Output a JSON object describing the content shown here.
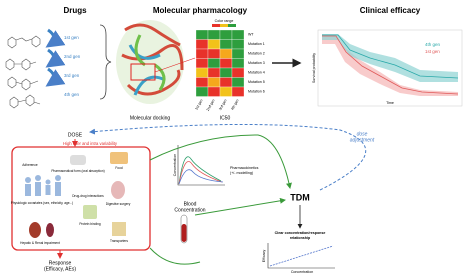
{
  "drugs": {
    "title": "Drugs",
    "generations": [
      "1st gen",
      "2nd gen",
      "3rd gen",
      "4th gen"
    ]
  },
  "molecular_pharmacology": {
    "title": "Molecular pharmacology",
    "docking_label": "Molecular docking",
    "ic50_label": "IC50",
    "legend_title": "Color range",
    "rows": [
      "WT",
      "Mutation 1",
      "Mutation 2",
      "Mutation 3",
      "Mutation 4",
      "Mutation 5",
      "Mutation 6"
    ],
    "columns": [
      "1st gen",
      "2nd gen",
      "3rd gen",
      "4th gen"
    ],
    "heatmap_colors": [
      [
        "#2e9e3e",
        "#2e9e3e",
        "#2e9e3e",
        "#2e9e3e"
      ],
      [
        "#e8322a",
        "#f2c21a",
        "#2e9e3e",
        "#2e9e3e"
      ],
      [
        "#e8322a",
        "#e8322a",
        "#f5a81c",
        "#2e9e3e"
      ],
      [
        "#e8322a",
        "#2e9e3e",
        "#e8322a",
        "#2e9e3e"
      ],
      [
        "#f2c21a",
        "#e8322a",
        "#2e9e3e",
        "#e8322a"
      ],
      [
        "#e8322a",
        "#f5a81c",
        "#e8322a",
        "#2e9e3e"
      ],
      [
        "#2e9e3e",
        "#e8322a",
        "#f2c21a",
        "#e8322a"
      ]
    ]
  },
  "clinical_efficacy": {
    "title": "Clinical efficacy",
    "legend": [
      "4th gen",
      "1st gen"
    ],
    "y_label": "Survival probability",
    "x_label": "Time"
  },
  "tdm": {
    "dose": "DOSE",
    "variability": "High inter and intra variability",
    "factors": [
      "Adherence",
      "Pharmaceutical form (oral absorption)",
      "Food",
      "Physiologic covariates (sex, ethnicity, age...)",
      "Drug-drug interactions",
      "Digestive surgery",
      "Hepatic & Renal impairment",
      "Protein binding",
      "Transporters"
    ],
    "response": [
      "Response",
      "(Efficacy, AEs)"
    ],
    "pk": [
      "Pharmacokinetics",
      "(+/- modelling)"
    ],
    "pk_axis": "Concentration",
    "blood": [
      "Blood",
      "Concentration"
    ],
    "tdm_label": "TDM",
    "dose_adjustment": [
      "dose",
      "adjustment"
    ],
    "relationship": [
      "Clear concentration/response",
      "relationship"
    ],
    "rel_y": "Efficacy",
    "rel_x": "Concentration"
  }
}
